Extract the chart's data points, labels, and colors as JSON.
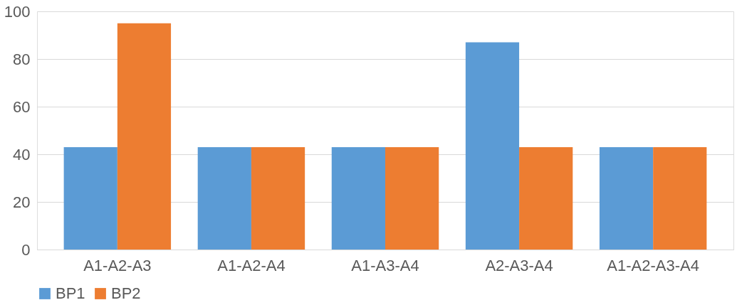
{
  "chart_data": {
    "type": "bar",
    "categories": [
      "A1-A2-A3",
      "A1-A2-A4",
      "A1-A3-A4",
      "A2-A3-A4",
      "A1-A2-A3-A4"
    ],
    "series": [
      {
        "name": "BP1",
        "color": "#5b9bd5",
        "values": [
          43,
          43,
          43,
          87,
          43
        ]
      },
      {
        "name": "BP2",
        "color": "#ed7d31",
        "values": [
          95,
          43,
          43,
          43,
          43
        ]
      }
    ],
    "ylim": [
      0,
      100
    ],
    "yticks": [
      0,
      20,
      40,
      60,
      80,
      100
    ],
    "grid": "y",
    "legend": "bottom"
  }
}
